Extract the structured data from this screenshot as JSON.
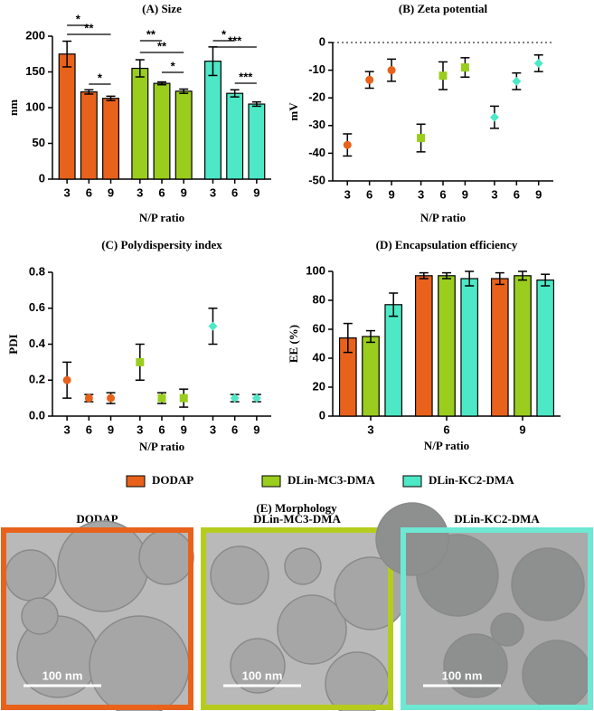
{
  "chart_data": [
    {
      "type": "bar",
      "title": "(A) Size",
      "group_by": "series",
      "categories": [
        "3",
        "6",
        "9"
      ],
      "series": [
        {
          "color": "#e8621c",
          "values": [
            175,
            122,
            113
          ],
          "errors": [
            18,
            3,
            3
          ]
        },
        {
          "color": "#9acd1e",
          "values": [
            155,
            134,
            123
          ],
          "errors": [
            12,
            2,
            3
          ]
        },
        {
          "color": "#4de8c6",
          "values": [
            165,
            120,
            105
          ],
          "errors": [
            20,
            5,
            3
          ]
        }
      ],
      "annotations": [
        [
          "*",
          "**",
          "*"
        ],
        [
          "**",
          "**",
          "*"
        ],
        [
          "*",
          "***",
          "***"
        ]
      ],
      "ylabel": "nm",
      "xlabel": "N/P ratio",
      "ylim": [
        0,
        200
      ],
      "yticks": [
        0,
        50,
        100,
        150,
        200
      ]
    },
    {
      "type": "dot",
      "title": "(B) Zeta potential",
      "group_by": "series",
      "categories": [
        "3",
        "6",
        "9"
      ],
      "series": [
        {
          "color": "#e8621c",
          "marker": "circle",
          "values": [
            -37,
            -13.5,
            -10
          ],
          "errors": [
            4,
            3,
            4
          ]
        },
        {
          "color": "#9acd1e",
          "marker": "square",
          "values": [
            -34.5,
            -12,
            -9
          ],
          "errors": [
            5,
            5,
            3.5
          ]
        },
        {
          "color": "#4de8c6",
          "marker": "triangle",
          "values": [
            -27,
            -14,
            -7.5
          ],
          "errors": [
            4,
            3,
            3
          ]
        }
      ],
      "ylabel": "mV",
      "xlabel": "N/P ratio",
      "ylim": [
        -50,
        0
      ],
      "yticks": [
        -50,
        -40,
        -30,
        -20,
        -10,
        0
      ],
      "zero_line": true
    },
    {
      "type": "dot",
      "title": "(C) Polydispersity index",
      "group_by": "series",
      "categories": [
        "3",
        "6",
        "9"
      ],
      "series": [
        {
          "color": "#e8621c",
          "marker": "circle",
          "values": [
            0.2,
            0.1,
            0.1
          ],
          "errors": [
            0.1,
            0.02,
            0.03
          ]
        },
        {
          "color": "#9acd1e",
          "marker": "square",
          "values": [
            0.3,
            0.1,
            0.1
          ],
          "errors": [
            0.1,
            0.03,
            0.05
          ]
        },
        {
          "color": "#4de8c6",
          "marker": "triangle",
          "values": [
            0.5,
            0.1,
            0.1
          ],
          "errors": [
            0.1,
            0.02,
            0.02
          ]
        }
      ],
      "ylabel": "PDI",
      "xlabel": "N/P ratio",
      "ylim": [
        0,
        0.8
      ],
      "yticks": [
        {
          "value": 0,
          "label": "0.0"
        },
        0.2,
        0.4,
        0.6,
        0.8
      ]
    },
    {
      "type": "bar",
      "title": "(D) Encapsulation efficiency",
      "group_by": "category",
      "categories": [
        "3",
        "6",
        "9"
      ],
      "series": [
        {
          "name": "DODAP",
          "color": "#e8621c",
          "values": [
            54,
            97,
            95
          ],
          "errors": [
            10,
            2,
            4
          ]
        },
        {
          "name": "DLin-MC3-DMA",
          "color": "#9acd1e",
          "values": [
            55,
            97,
            97
          ],
          "errors": [
            4,
            2,
            3
          ]
        },
        {
          "name": "DLin-KC2-DMA",
          "color": "#4de8c6",
          "values": [
            77,
            95,
            94
          ],
          "errors": [
            8,
            5,
            4
          ]
        }
      ],
      "ylabel": "EE (%)",
      "xlabel": "N/P ratio",
      "ylim": [
        0,
        100
      ],
      "yticks": [
        0,
        20,
        40,
        60,
        80,
        100
      ]
    }
  ],
  "morphology": {
    "title": "(E) Morphology",
    "panels": [
      {
        "label": "DODAP",
        "scale_bar": "100 nm",
        "border_color": "#e8621c"
      },
      {
        "label": "DLin-MC3-DMA",
        "scale_bar": "100 nm",
        "border_color": "#b5cc1e"
      },
      {
        "label": "DLin-KC2-DMA",
        "scale_bar": "100 nm",
        "border_color": "#6ee8d2"
      }
    ]
  }
}
